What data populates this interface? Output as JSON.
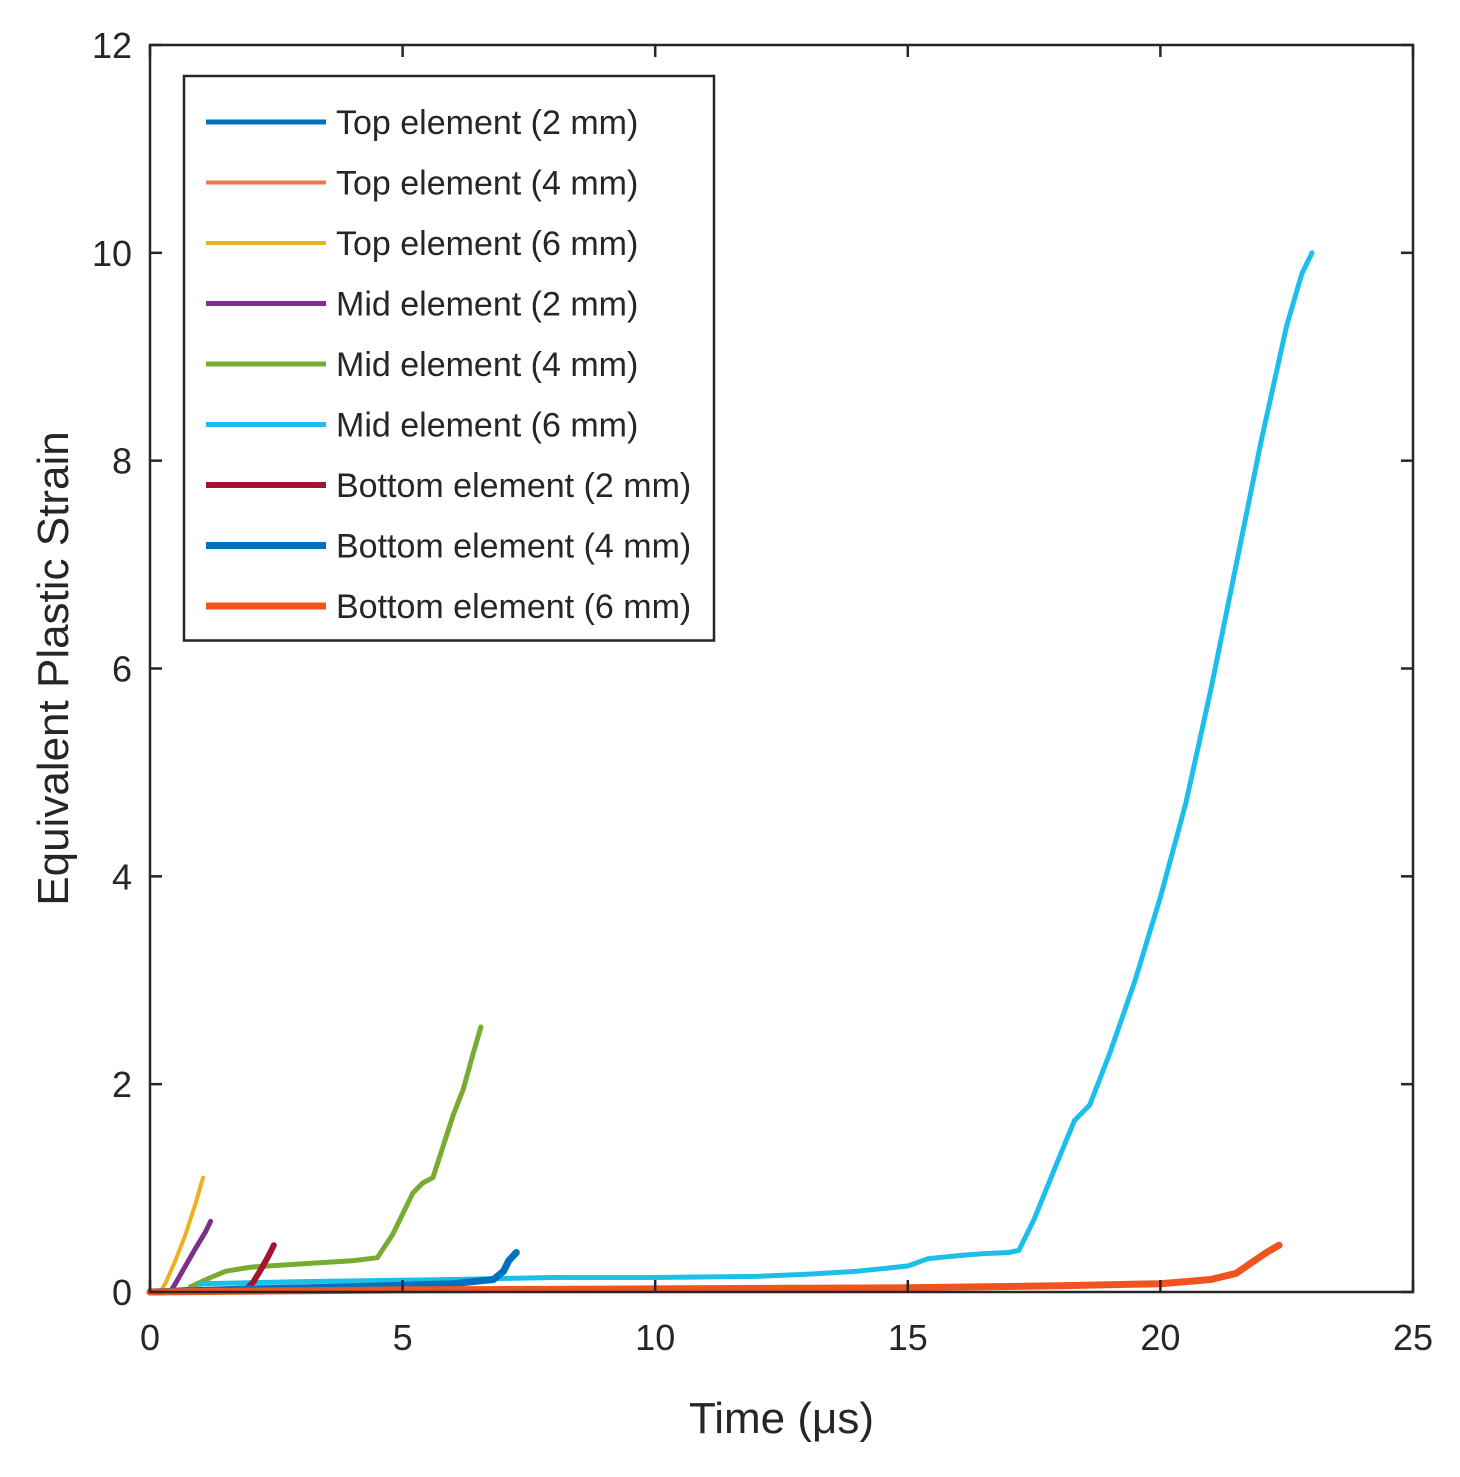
{
  "chart_data": {
    "type": "line",
    "title": "",
    "xlabel": "Time (μs)",
    "ylabel": "Equivalent Plastic Strain",
    "xlim": [
      0,
      25
    ],
    "ylim": [
      0,
      12
    ],
    "xticks": [
      0,
      5,
      10,
      15,
      20,
      25
    ],
    "yticks": [
      0,
      2,
      4,
      6,
      8,
      10,
      12
    ],
    "xtick_labels": [
      "0",
      "5",
      "10",
      "15",
      "20",
      "25"
    ],
    "ytick_labels": [
      "0",
      "2",
      "4",
      "6",
      "8",
      "10",
      "12"
    ],
    "grid": false,
    "legend_position": "top-left",
    "series": [
      {
        "name": "Top element (2 mm)",
        "color": "#0072BD",
        "x": [
          0,
          0.3,
          0.6,
          1.0
        ],
        "y": [
          0,
          0.01,
          0.02,
          0.03
        ]
      },
      {
        "name": "Top element (4 mm)",
        "color": "#F07846",
        "x": [
          0,
          0.4,
          0.8
        ],
        "y": [
          0,
          0.01,
          0.02
        ]
      },
      {
        "name": "Top element (6 mm)",
        "color": "#EDB120",
        "x": [
          0.2,
          0.3,
          0.5,
          0.7,
          0.9,
          1.05
        ],
        "y": [
          0,
          0.08,
          0.3,
          0.55,
          0.85,
          1.1
        ]
      },
      {
        "name": "Mid element (2 mm)",
        "color": "#7E2F8E",
        "x": [
          0.4,
          0.5,
          0.7,
          0.9,
          1.1,
          1.2
        ],
        "y": [
          0,
          0.08,
          0.25,
          0.42,
          0.58,
          0.68
        ]
      },
      {
        "name": "Mid element (4 mm)",
        "color": "#77AC30",
        "x": [
          0.8,
          1.2,
          1.5,
          2.0,
          3.0,
          4.0,
          4.5,
          4.8,
          5.0,
          5.2,
          5.4,
          5.6,
          5.8,
          6.0,
          6.2,
          6.4,
          6.55
        ],
        "y": [
          0.05,
          0.14,
          0.2,
          0.24,
          0.27,
          0.3,
          0.33,
          0.55,
          0.75,
          0.95,
          1.05,
          1.1,
          1.4,
          1.7,
          1.95,
          2.3,
          2.55
        ]
      },
      {
        "name": "Mid element (6 mm)",
        "color": "#1CBFEA",
        "x": [
          1.0,
          3.0,
          6.0,
          8.0,
          10.0,
          12.0,
          13.0,
          14.0,
          15.0,
          15.4,
          16.0,
          16.5,
          17.0,
          17.2,
          17.5,
          18.0,
          18.3,
          18.6,
          19.0,
          19.5,
          20.0,
          20.5,
          21.0,
          21.5,
          22.0,
          22.5,
          22.8,
          23.0
        ],
        "y": [
          0.08,
          0.1,
          0.12,
          0.14,
          0.14,
          0.15,
          0.17,
          0.2,
          0.25,
          0.32,
          0.35,
          0.37,
          0.38,
          0.4,
          0.7,
          1.3,
          1.65,
          1.8,
          2.3,
          3.0,
          3.8,
          4.7,
          5.8,
          7.0,
          8.2,
          9.3,
          9.8,
          10.0
        ]
      },
      {
        "name": "Bottom element (2 mm)",
        "color": "#A2142F",
        "x": [
          1.0,
          1.9,
          2.05,
          2.2,
          2.35,
          2.45
        ],
        "y": [
          0,
          0.02,
          0.1,
          0.22,
          0.35,
          0.45
        ]
      },
      {
        "name": "Bottom element (4 mm)",
        "color": "#0072BD",
        "x": [
          0,
          2.0,
          4.0,
          6.0,
          6.8,
          7.0,
          7.1,
          7.25
        ],
        "y": [
          0,
          0.03,
          0.05,
          0.08,
          0.12,
          0.2,
          0.3,
          0.38
        ]
      },
      {
        "name": "Bottom element (6 mm)",
        "color": "#F0541E",
        "x": [
          0,
          5.0,
          10.0,
          15.0,
          18.0,
          20.0,
          21.0,
          21.5,
          21.8,
          22.1,
          22.35
        ],
        "y": [
          0,
          0.02,
          0.03,
          0.04,
          0.06,
          0.08,
          0.12,
          0.18,
          0.28,
          0.38,
          0.45
        ]
      }
    ]
  }
}
